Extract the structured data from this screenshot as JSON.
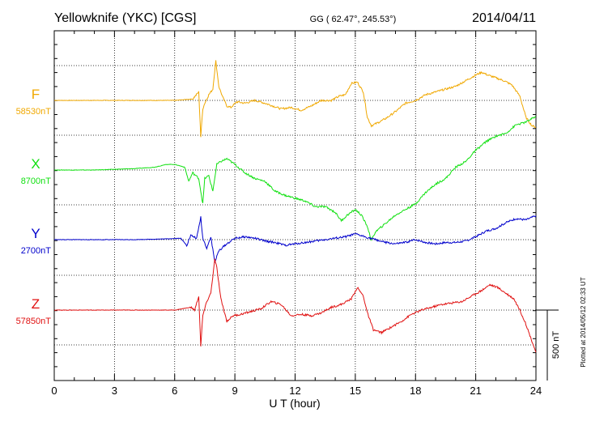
{
  "header": {
    "station": "Yellowknife (YKC)  [CGS]",
    "coords": "GG ( 62.47°, 245.53°)",
    "date": "2014/04/11"
  },
  "side_note": "Plotted at 2014/05/12 02:33 UT",
  "colors": {
    "F": "#f0a800",
    "X": "#10e010",
    "Y": "#0000cc",
    "Z": "#e01010",
    "grid": "#000000"
  },
  "chart_data": {
    "type": "line",
    "title": "Yellowknife (YKC)  [CGS]",
    "xlabel": "U T (hour)",
    "ylabel": "",
    "xlim": [
      0,
      24
    ],
    "x_ticks": [
      0,
      3,
      6,
      9,
      12,
      15,
      18,
      21,
      24
    ],
    "x_tick_labels": [
      "0",
      "3",
      "6",
      "9",
      "12",
      "15",
      "18",
      "21",
      "24"
    ],
    "scale_bar": {
      "label": "500 nT",
      "value_nT": 500
    },
    "grid": true,
    "series": [
      {
        "name": "F",
        "baseline_label": "58530nT",
        "baseline_nT": 58530,
        "color": "#f0a800",
        "x": [
          0,
          2,
          4,
          6,
          6.9,
          7.2,
          7.3,
          7.4,
          7.5,
          7.7,
          7.9,
          8.05,
          8.2,
          8.4,
          8.6,
          8.8,
          9.1,
          9.5,
          10,
          10.5,
          10.9,
          11.3,
          11.8,
          12.3,
          12.8,
          13.3,
          13.8,
          14.2,
          14.5,
          14.8,
          15.1,
          15.4,
          15.6,
          15.8,
          16.1,
          16.5,
          17,
          17.5,
          18,
          18.5,
          19,
          19.5,
          20,
          20.5,
          21,
          21.3,
          21.6,
          22,
          22.4,
          22.8,
          23.2,
          23.5,
          23.8,
          24
        ],
        "y": [
          0,
          0,
          0,
          0,
          10,
          60,
          -260,
          -60,
          -20,
          40,
          80,
          280,
          100,
          20,
          -40,
          -50,
          -10,
          -20,
          0,
          -20,
          -40,
          -60,
          -50,
          -70,
          -40,
          0,
          0,
          30,
          40,
          120,
          130,
          60,
          -120,
          -180,
          -160,
          -130,
          -80,
          -20,
          0,
          40,
          60,
          80,
          100,
          140,
          180,
          200,
          180,
          160,
          140,
          110,
          30,
          -120,
          -180,
          -190
        ]
      },
      {
        "name": "X",
        "baseline_label": "8700nT",
        "baseline_nT": 8700,
        "color": "#10e010",
        "x": [
          0,
          2,
          4,
          5,
          5.6,
          6,
          6.5,
          6.7,
          6.9,
          7.2,
          7.4,
          7.5,
          7.7,
          7.9,
          8.1,
          8.3,
          8.6,
          9,
          9.5,
          10,
          10.5,
          11,
          11.5,
          12,
          12.5,
          13,
          13.5,
          14,
          14.3,
          14.6,
          15,
          15.3,
          15.6,
          15.8,
          16,
          16.5,
          17,
          17.5,
          18,
          18.5,
          19,
          19.5,
          20,
          20.5,
          21,
          21.5,
          22,
          22.5,
          23,
          23.5,
          24
        ],
        "y": [
          0,
          0,
          10,
          20,
          40,
          40,
          20,
          -80,
          -20,
          -60,
          -240,
          -60,
          -40,
          -150,
          40,
          60,
          80,
          40,
          -20,
          -60,
          -80,
          -150,
          -180,
          -200,
          -220,
          -260,
          -260,
          -300,
          -360,
          -320,
          -280,
          -320,
          -400,
          -500,
          -440,
          -380,
          -320,
          -280,
          -240,
          -160,
          -100,
          -60,
          20,
          60,
          140,
          200,
          240,
          260,
          320,
          340,
          380
        ]
      },
      {
        "name": "Y",
        "baseline_label": "2700nT",
        "baseline_nT": 2700,
        "color": "#0000cc",
        "x": [
          0,
          2,
          4,
          5.5,
          6.3,
          6.6,
          6.8,
          7.1,
          7.3,
          7.4,
          7.6,
          7.8,
          8.0,
          8.2,
          8.5,
          9,
          9.5,
          10,
          10.5,
          11,
          11.5,
          12,
          12.5,
          13,
          13.5,
          14,
          14.5,
          15,
          15.5,
          16,
          16.5,
          17,
          17.5,
          18,
          18.5,
          19,
          19.5,
          20,
          20.5,
          21,
          21.5,
          22,
          22.5,
          23,
          23.5,
          24
        ],
        "y": [
          0,
          0,
          0,
          5,
          10,
          -40,
          30,
          10,
          160,
          10,
          -60,
          20,
          -160,
          -80,
          -40,
          10,
          20,
          10,
          -10,
          -20,
          -40,
          -30,
          -20,
          -10,
          0,
          10,
          20,
          40,
          20,
          0,
          -20,
          -30,
          -20,
          0,
          -20,
          -30,
          -20,
          -20,
          -10,
          20,
          60,
          80,
          120,
          150,
          140,
          170
        ]
      },
      {
        "name": "Z",
        "baseline_label": "57850nT",
        "baseline_nT": 57850,
        "color": "#e01010",
        "x": [
          0,
          2,
          4,
          6,
          6.8,
          7.0,
          7.2,
          7.3,
          7.4,
          7.6,
          7.8,
          8.0,
          8.1,
          8.3,
          8.6,
          8.9,
          9.3,
          9.8,
          10.3,
          10.8,
          11.3,
          11.8,
          12.3,
          12.8,
          13.3,
          13.8,
          14.3,
          14.8,
          15.1,
          15.4,
          15.6,
          15.9,
          16.3,
          16.8,
          17.3,
          17.8,
          18.3,
          18.8,
          19.3,
          19.8,
          20.3,
          20.8,
          21.3,
          21.7,
          22.1,
          22.5,
          22.9,
          23.2,
          23.5,
          23.8,
          24
        ],
        "y": [
          0,
          0,
          0,
          0,
          20,
          0,
          100,
          -260,
          -40,
          60,
          120,
          360,
          300,
          80,
          -80,
          -40,
          -30,
          -10,
          10,
          60,
          40,
          -40,
          -30,
          -40,
          -20,
          20,
          40,
          80,
          160,
          100,
          -20,
          -140,
          -160,
          -120,
          -80,
          -30,
          0,
          20,
          40,
          50,
          60,
          100,
          140,
          180,
          160,
          120,
          80,
          0,
          -100,
          -220,
          -300
        ]
      }
    ]
  }
}
